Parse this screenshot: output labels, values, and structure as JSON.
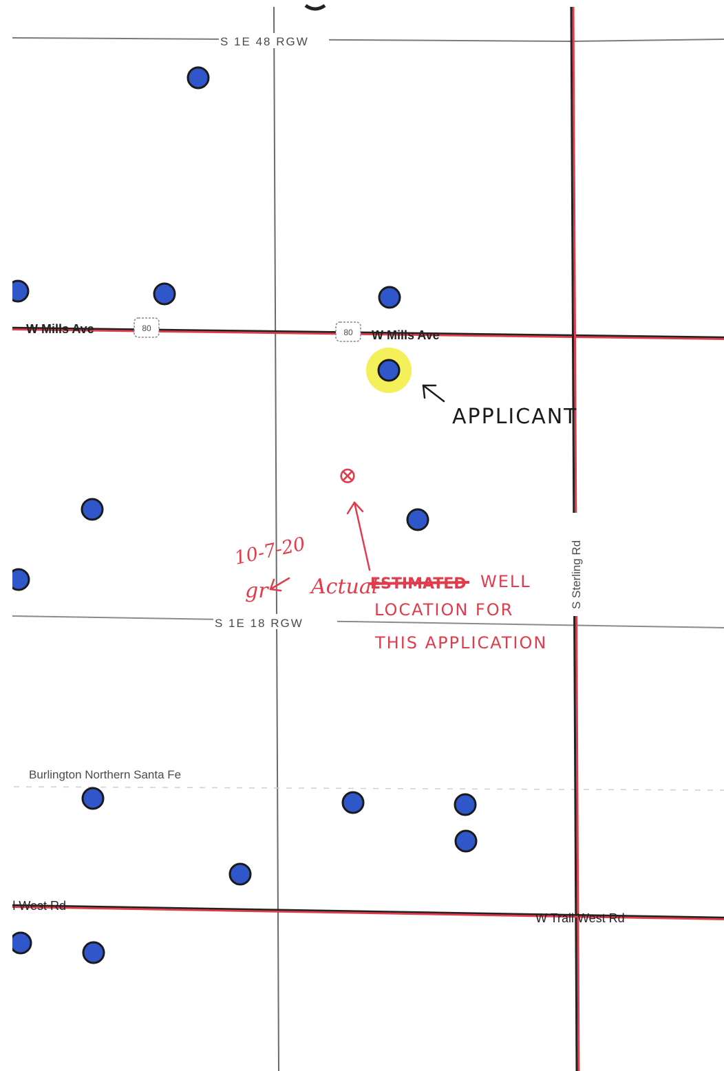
{
  "map": {
    "roads": {
      "top_section_road": "S 1E 48 RGW",
      "w_mills_left": "W Mills Ave",
      "w_mills_right": "W Mills Ave",
      "mid_section_road": "S 1E 18 RGW",
      "s_sterling": "S Sterling Rd",
      "trail_west_left": "Trail West Rd",
      "trail_west_right": "W Trail West Rd",
      "railroad": "Burlington Northern Santa Fe",
      "shield_left": "80",
      "shield_right": "80"
    },
    "annotations": {
      "applicant": "APPLICANT",
      "date": "10-7-20",
      "initials": "gr",
      "actual": "Actual",
      "estimated_struck": "ESTIMATED",
      "well": "WELL",
      "line2": "LOCATION FOR",
      "line3": "THIS APPLICATION",
      "well_marker": "⊗"
    },
    "colors": {
      "well_dot": "#2f57c9",
      "well_outline": "#1a1a1a",
      "highlight": "#f3f05a",
      "red_ink": "#e03c4b",
      "road_black": "#222222"
    }
  }
}
